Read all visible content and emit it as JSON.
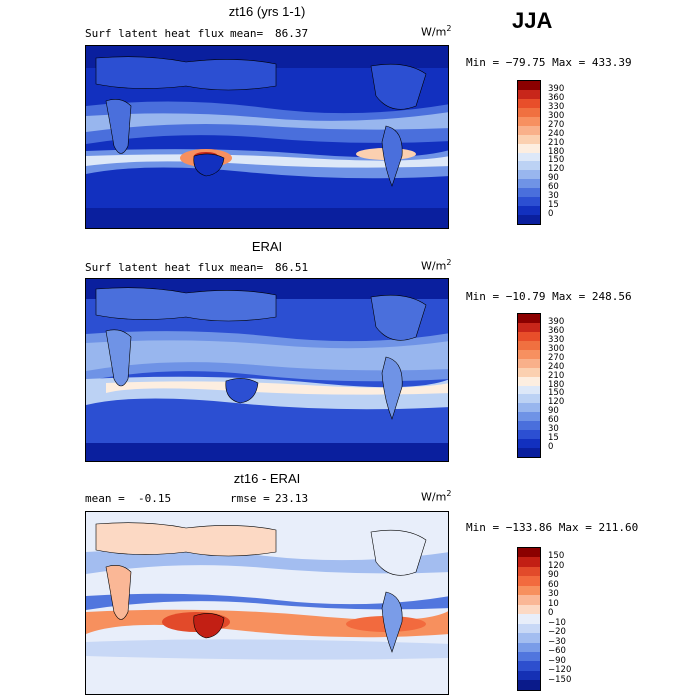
{
  "season": "JJA",
  "panels": [
    {
      "title": "zt16 (yrs 1-1)",
      "left_label": "Surf latent heat flux",
      "stat_label": "mean=",
      "stat_value": "86.37",
      "units_base": "W/m",
      "units_exp": "2",
      "minmax": "Min = −79.75 Max = 433.39",
      "colorbar_levels": [
        "390",
        "360",
        "330",
        "300",
        "270",
        "240",
        "210",
        "180",
        "150",
        "120",
        "90",
        "60",
        "30",
        "15",
        "0"
      ],
      "colorbar_colors": [
        "#8b0000",
        "#c8261a",
        "#e84e2a",
        "#f07040",
        "#f79060",
        "#f9b08a",
        "#fbd0b0",
        "#fdeee0",
        "#dde8f8",
        "#bcd2f4",
        "#98b6ee",
        "#6f93e6",
        "#4a6fdc",
        "#2c4fd2",
        "#1230bf",
        "#0a1f9e"
      ]
    },
    {
      "title": "ERAI",
      "left_label": "Surf latent heat flux",
      "stat_label": "mean=",
      "stat_value": "86.51",
      "units_base": "W/m",
      "units_exp": "2",
      "minmax": "Min = −10.79 Max = 248.56",
      "colorbar_levels": [
        "390",
        "360",
        "330",
        "300",
        "270",
        "240",
        "210",
        "180",
        "150",
        "120",
        "90",
        "60",
        "30",
        "15",
        "0"
      ],
      "colorbar_colors": [
        "#8b0000",
        "#c8261a",
        "#e84e2a",
        "#f07040",
        "#f79060",
        "#f9b08a",
        "#fbd0b0",
        "#fdeee0",
        "#dde8f8",
        "#bcd2f4",
        "#98b6ee",
        "#6f93e6",
        "#4a6fdc",
        "#2c4fd2",
        "#1230bf",
        "#0a1f9e"
      ]
    },
    {
      "title": "zt16 - ERAI",
      "left_label": "mean =",
      "left_value": "-0.15",
      "stat_label": "rmse =",
      "stat_value": "23.13",
      "units_base": "W/m",
      "units_exp": "2",
      "minmax": "Min = −133.86 Max = 211.60",
      "colorbar_levels": [
        "150",
        "120",
        "90",
        "60",
        "30",
        "10",
        "0",
        "−10",
        "−20",
        "−30",
        "−60",
        "−90",
        "−120",
        "−150"
      ],
      "colorbar_colors": [
        "#8b0000",
        "#c21f14",
        "#e24a2a",
        "#f26a3e",
        "#f7905e",
        "#fab796",
        "#fcd9c4",
        "#e8eefa",
        "#c8d8f6",
        "#a3bdf0",
        "#7a9ce8",
        "#5176de",
        "#2d4fce",
        "#1530b4",
        "#0a1a8a"
      ]
    }
  ]
}
